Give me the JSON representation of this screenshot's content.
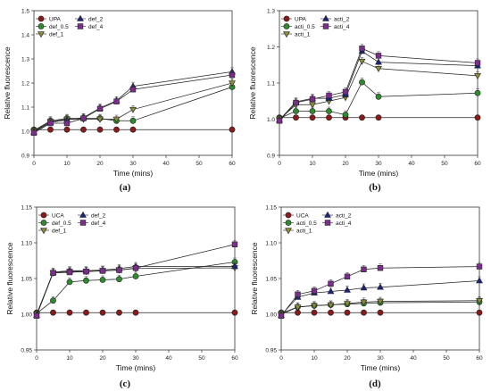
{
  "chart_data": [
    {
      "type": "line",
      "panel_label": "(a)",
      "xlabel": "Time (mins)",
      "ylabel": "Relative fluorescence",
      "xlim": [
        0,
        60
      ],
      "ylim": [
        0.9,
        1.5
      ],
      "x_ticks": [
        0,
        10,
        20,
        30,
        40,
        50,
        60
      ],
      "y_ticks": [
        "0.9",
        "1.0",
        "1.1",
        "1.2",
        "1.3",
        "1.4",
        "1.5"
      ],
      "x": [
        0,
        5,
        10,
        15,
        20,
        25,
        30,
        60
      ],
      "legend": "top-left",
      "series": [
        {
          "name": "UPA",
          "marker": "circle",
          "color": "#8b1a1a",
          "values": [
            1.0,
            1.0,
            1.0,
            1.0,
            1.0,
            1.0,
            1.0,
            1.0
          ]
        },
        {
          "name": "def_0.5",
          "marker": "circle",
          "color": "#2e8b2e",
          "values": [
            1.0,
            1.04,
            1.05,
            1.05,
            1.05,
            1.04,
            1.04,
            1.18
          ]
        },
        {
          "name": "def_1",
          "marker": "triangle-down",
          "color": "#8b8b3c",
          "values": [
            1.0,
            1.04,
            1.05,
            1.05,
            1.05,
            1.05,
            1.09,
            1.2
          ]
        },
        {
          "name": "def_2",
          "marker": "triangle-up",
          "color": "#1a237e",
          "values": [
            1.0,
            1.04,
            1.05,
            1.06,
            1.1,
            1.13,
            1.19,
            1.25
          ]
        },
        {
          "name": "def_4",
          "marker": "square",
          "color": "#7b2d8b",
          "values": [
            1.0,
            1.04,
            1.04,
            1.06,
            1.1,
            1.13,
            1.18,
            1.24
          ]
        }
      ]
    },
    {
      "type": "line",
      "panel_label": "(b)",
      "xlabel": "Time (mins)",
      "ylabel": "Relative fluorescence",
      "xlim": [
        0,
        60
      ],
      "ylim": [
        0.9,
        1.3
      ],
      "x_ticks": [
        0,
        10,
        20,
        30,
        40,
        50,
        60
      ],
      "y_ticks": [
        "0.9",
        "1.0",
        "1.1",
        "1.2",
        "1.3"
      ],
      "x": [
        0,
        5,
        10,
        15,
        20,
        25,
        30,
        60
      ],
      "legend": "top-left",
      "series": [
        {
          "name": "UPA",
          "marker": "circle",
          "color": "#8b1a1a",
          "values": [
            1.0,
            1.0,
            1.0,
            1.0,
            1.0,
            1.0,
            1.0,
            1.0
          ]
        },
        {
          "name": "acti_0.5",
          "marker": "circle",
          "color": "#2e8b2e",
          "values": [
            1.0,
            1.02,
            1.02,
            1.02,
            1.01,
            1.1,
            1.06,
            1.07
          ]
        },
        {
          "name": "acti_1",
          "marker": "triangle-down",
          "color": "#8b8b3c",
          "values": [
            1.0,
            1.04,
            1.04,
            1.05,
            1.06,
            1.16,
            1.14,
            1.12
          ]
        },
        {
          "name": "acti_2",
          "marker": "triangle-up",
          "color": "#1a237e",
          "values": [
            1.0,
            1.05,
            1.06,
            1.06,
            1.07,
            1.19,
            1.16,
            1.15
          ]
        },
        {
          "name": "acti_4",
          "marker": "square",
          "color": "#7b2d8b",
          "values": [
            1.0,
            1.05,
            1.06,
            1.07,
            1.08,
            1.2,
            1.18,
            1.16
          ]
        }
      ]
    },
    {
      "type": "line",
      "panel_label": "(c)",
      "xlabel": "Time (mins)",
      "ylabel": "Relative fluorescence",
      "xlim": [
        0,
        60
      ],
      "ylim": [
        0.95,
        1.15
      ],
      "x_ticks": [
        0,
        10,
        20,
        30,
        40,
        50,
        60
      ],
      "y_ticks": [
        "0.95",
        "1.00",
        "1.05",
        "1.10",
        "1.15"
      ],
      "x": [
        0,
        5,
        10,
        15,
        20,
        25,
        30,
        60
      ],
      "legend": "top-left",
      "series": [
        {
          "name": "UCA",
          "marker": "circle",
          "color": "#8b1a1a",
          "values": [
            1.0,
            1.0,
            1.0,
            1.0,
            1.0,
            1.0,
            1.0,
            1.0
          ]
        },
        {
          "name": "def_0.5",
          "marker": "circle",
          "color": "#2e8b2e",
          "values": [
            1.0,
            1.018,
            1.044,
            1.046,
            1.047,
            1.048,
            1.052,
            1.072
          ]
        },
        {
          "name": "def_1",
          "marker": "triangle-down",
          "color": "#8b8b3c",
          "values": [
            1.0,
            1.058,
            1.06,
            1.06,
            1.061,
            1.062,
            1.064,
            1.065
          ]
        },
        {
          "name": "def_2",
          "marker": "triangle-up",
          "color": "#1a237e",
          "values": [
            1.0,
            1.06,
            1.062,
            1.062,
            1.063,
            1.065,
            1.068,
            1.068
          ]
        },
        {
          "name": "def_4",
          "marker": "square",
          "color": "#7b2d8b",
          "values": [
            1.0,
            1.06,
            1.061,
            1.062,
            1.063,
            1.064,
            1.067,
            1.1
          ]
        }
      ]
    },
    {
      "type": "line",
      "panel_label": "(d)",
      "xlabel": "Time (mins)",
      "ylabel": "Relative fluorescence",
      "xlim": [
        0,
        60
      ],
      "ylim": [
        0.95,
        1.15
      ],
      "x_ticks": [
        0,
        10,
        20,
        30,
        40,
        50,
        60
      ],
      "y_ticks": [
        "0.95",
        "1.00",
        "1.05",
        "1.10",
        "1.15"
      ],
      "x": [
        0,
        5,
        10,
        15,
        20,
        25,
        30,
        60
      ],
      "legend": "top-left",
      "series": [
        {
          "name": "UCA",
          "marker": "circle",
          "color": "#8b1a1a",
          "values": [
            1.0,
            1.0,
            1.0,
            1.0,
            1.0,
            1.0,
            1.0,
            1.0
          ]
        },
        {
          "name": "acti_0.5",
          "marker": "circle",
          "color": "#2e8b2e",
          "values": [
            1.0,
            1.009,
            1.011,
            1.012,
            1.013,
            1.014,
            1.015,
            1.016
          ]
        },
        {
          "name": "acti_1",
          "marker": "triangle-down",
          "color": "#8b8b3c",
          "values": [
            1.0,
            1.01,
            1.012,
            1.013,
            1.015,
            1.017,
            1.018,
            1.019
          ]
        },
        {
          "name": "acti_2",
          "marker": "triangle-up",
          "color": "#1a237e",
          "values": [
            1.0,
            1.025,
            1.031,
            1.033,
            1.035,
            1.038,
            1.039,
            1.048
          ]
        },
        {
          "name": "acti_4",
          "marker": "square",
          "color": "#7b2d8b",
          "values": [
            1.0,
            1.03,
            1.035,
            1.045,
            1.055,
            1.065,
            1.067,
            1.069
          ]
        }
      ]
    }
  ]
}
